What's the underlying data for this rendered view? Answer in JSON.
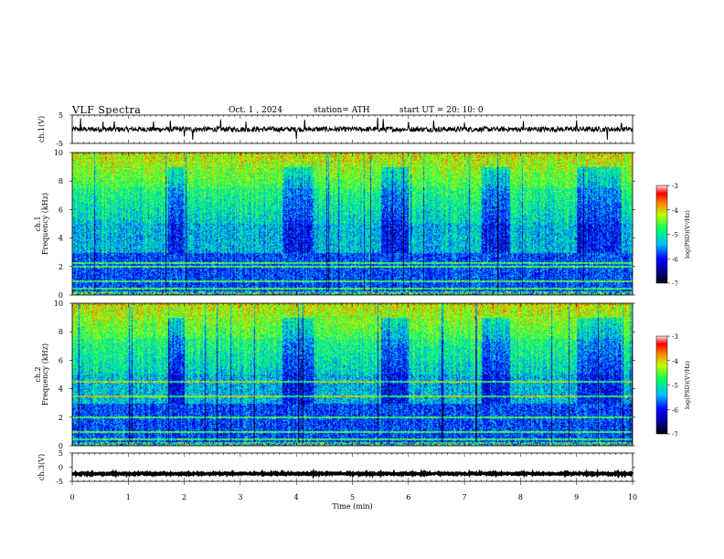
{
  "header": {
    "title": "VLF Spectra",
    "date": "Oct. 1 , 2024",
    "station": "station= ATH",
    "start": "start UT = 20: 10: 0"
  },
  "chart_data": [
    {
      "type": "line",
      "name": "channel-1-waveform",
      "ylabel": "ch.1(V)",
      "ylim": [
        -5,
        5
      ],
      "yticks": [
        5,
        -5
      ],
      "xlim": [
        0,
        10
      ],
      "signal": {
        "baseline": 0,
        "noise_amplitude": 0.9,
        "spikes": [
          0.15,
          0.55,
          0.75,
          1.45,
          1.75,
          2.0,
          2.15,
          2.65,
          3.1,
          4.0,
          4.15,
          5.45,
          5.55,
          6.0,
          6.45,
          7.0,
          8.05,
          9.0,
          9.55,
          9.8
        ]
      }
    },
    {
      "type": "heatmap",
      "name": "channel-1-spectrogram",
      "ylabel": "ch.1\nFrequency (kHz)",
      "ylim": [
        0,
        10
      ],
      "yticks": [
        0,
        2,
        4,
        6,
        8,
        10
      ],
      "xlim": [
        0,
        10
      ],
      "colorbar": {
        "label": "log(PSD)(V²/Hz)",
        "range": [
          -7,
          -3
        ],
        "ticks": [
          -3,
          -4,
          -5,
          -6,
          -7
        ]
      },
      "colormap": [
        "#000080",
        "#0000ff",
        "#0080ff",
        "#00ffff",
        "#00ff80",
        "#80ff00",
        "#ffff00",
        "#ff8000",
        "#ff0000",
        "#ffffff"
      ],
      "quiet_intervals_min": [
        [
          1.7,
          2.0
        ],
        [
          3.75,
          4.3
        ],
        [
          5.5,
          6.0
        ],
        [
          7.3,
          7.8
        ],
        [
          9.0,
          9.8
        ]
      ],
      "tone_lines_khz": [
        2.0,
        2.3,
        1.0,
        0.5,
        0.2
      ],
      "time_trace_marks": [
        2.05,
        3.75,
        5.5,
        7.6,
        9.0
      ]
    },
    {
      "type": "heatmap",
      "name": "channel-2-spectrogram",
      "ylabel": "ch.2\nFrequency (kHz)",
      "ylim": [
        0,
        10
      ],
      "yticks": [
        0,
        2,
        4,
        6,
        8,
        10
      ],
      "xlim": [
        0,
        10
      ],
      "colorbar": {
        "label": "log(PSD)(V²/Hz)",
        "range": [
          -7,
          -3
        ],
        "ticks": [
          -3,
          -4,
          -5,
          -6,
          -7
        ]
      },
      "quiet_intervals_min": [
        [
          1.7,
          2.0
        ],
        [
          3.75,
          4.3
        ],
        [
          5.5,
          6.0
        ],
        [
          7.3,
          7.8
        ],
        [
          9.0,
          9.8
        ]
      ],
      "tone_lines_khz": [
        4.5,
        3.5,
        2.0,
        1.0,
        0.5
      ]
    },
    {
      "type": "line",
      "name": "channel-3-waveform",
      "ylabel": "ch.3(V)",
      "ylim": [
        -5,
        5
      ],
      "yticks": [
        5,
        0,
        -5
      ],
      "xlim": [
        0,
        10
      ],
      "signal": {
        "baseline": -2.3,
        "noise_amplitude": 0.25
      }
    }
  ],
  "xaxis": {
    "label": "Time (min)",
    "ticks": [
      0,
      1,
      2,
      3,
      4,
      5,
      6,
      7,
      8,
      9,
      10
    ]
  }
}
